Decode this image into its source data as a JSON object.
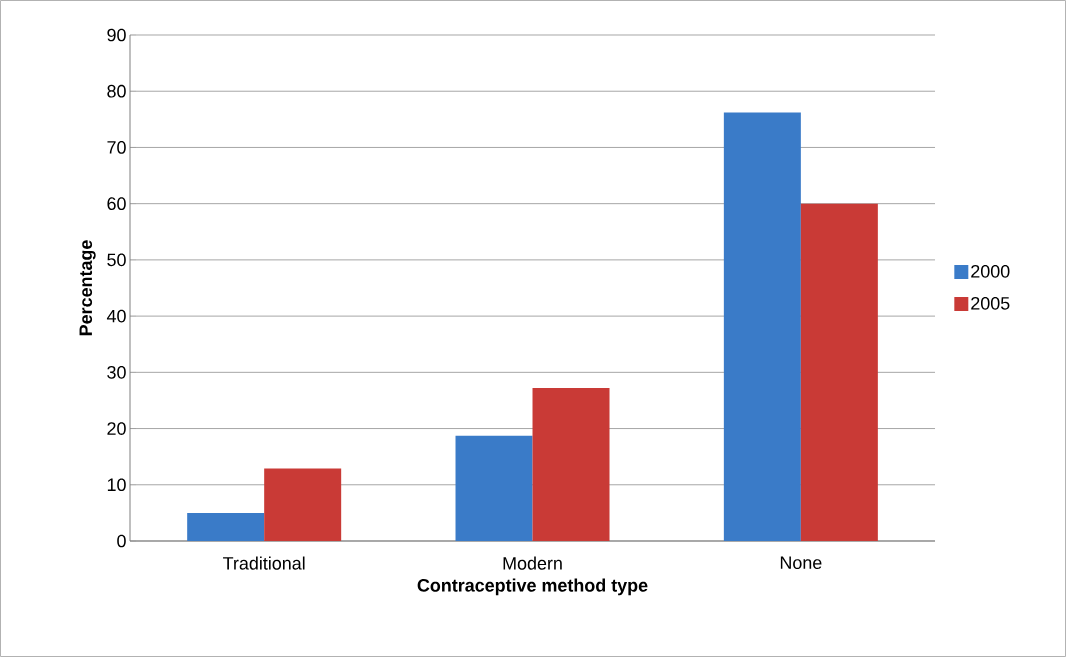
{
  "chart_data": {
    "type": "bar",
    "xlabel": "Contraceptive method type",
    "ylabel": "Percentage",
    "categories": [
      "Traditional",
      "Modern",
      "None"
    ],
    "series": [
      {
        "name": "2000",
        "color": "#3a7bc8",
        "values": [
          5.0,
          18.7,
          76.2
        ]
      },
      {
        "name": "2005",
        "color": "#c93a36",
        "values": [
          12.9,
          27.2,
          60.0
        ]
      }
    ],
    "ylim": [
      0,
      90
    ],
    "yticks": [
      0,
      10,
      20,
      30,
      40,
      50,
      60,
      70,
      80,
      90
    ],
    "grid": "y",
    "legend": "right"
  }
}
